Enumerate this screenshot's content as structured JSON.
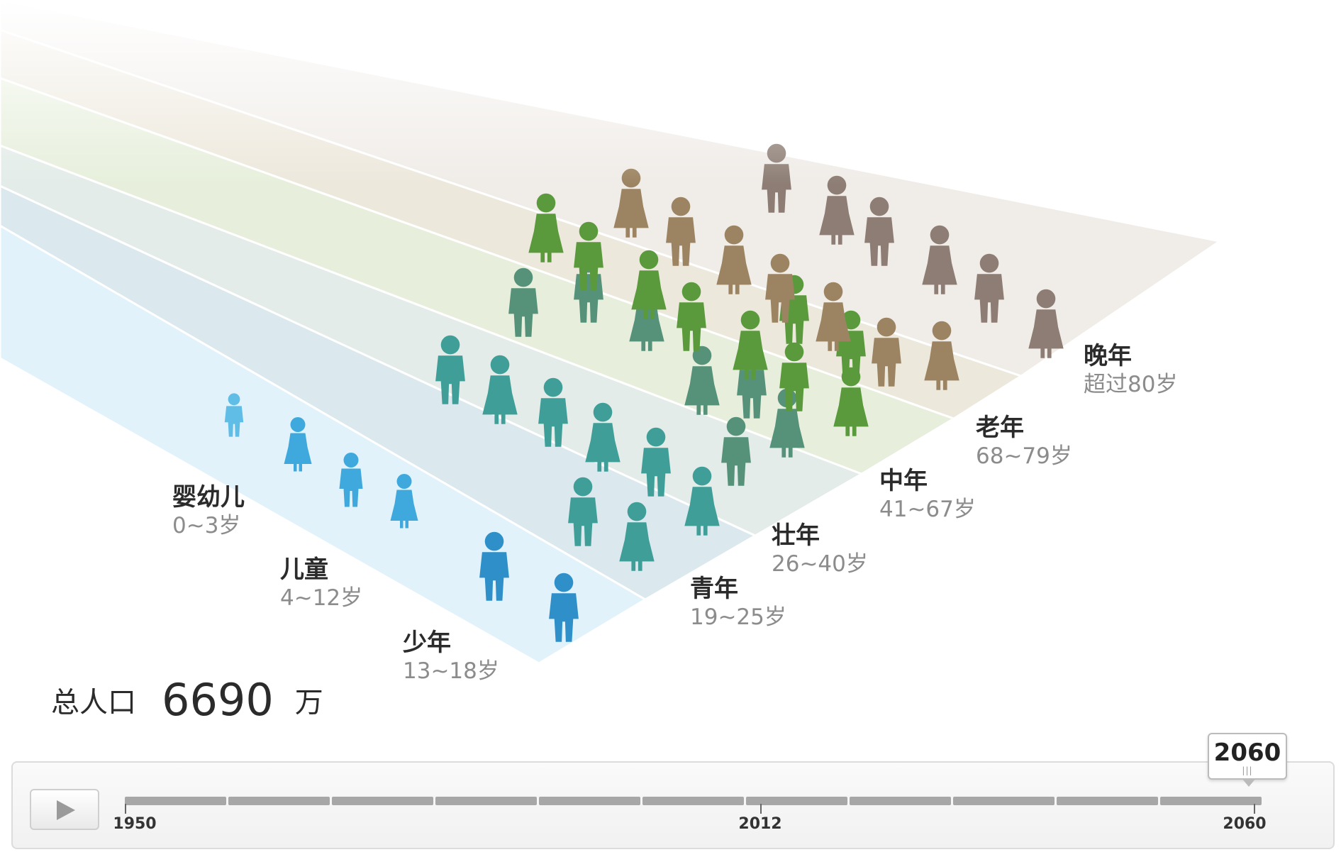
{
  "groups": [
    {
      "name": "婴幼儿",
      "range": "0~3岁",
      "color": "#5fbde6"
    },
    {
      "name": "儿童",
      "range": "4~12岁",
      "color": "#3fa9dd"
    },
    {
      "name": "少年",
      "range": "13~18岁",
      "color": "#2f8fc9"
    },
    {
      "name": "青年",
      "range": "19~25岁",
      "color": "#3f9f98"
    },
    {
      "name": "壮年",
      "range": "26~40岁",
      "color": "#56927a"
    },
    {
      "name": "中年",
      "range": "41~67岁",
      "color": "#5a9a3c"
    },
    {
      "name": "老年",
      "range": "68~79岁",
      "color": "#9c8462"
    },
    {
      "name": "晚年",
      "range": "超过80岁",
      "color": "#8d7d74"
    }
  ],
  "band_colors": [
    "#e1f2fb",
    "#dbe8ee",
    "#e3ece8",
    "#e7efdc",
    "#ede8dc",
    "#f0ece8"
  ],
  "total": {
    "label": "总人口",
    "value": "6690",
    "unit": "万"
  },
  "timeline": {
    "play_icon": "play-icon",
    "start_year": "1950",
    "mid_year": "2012",
    "end_year": "2060",
    "current_year": "2060",
    "progress": 1.0
  }
}
